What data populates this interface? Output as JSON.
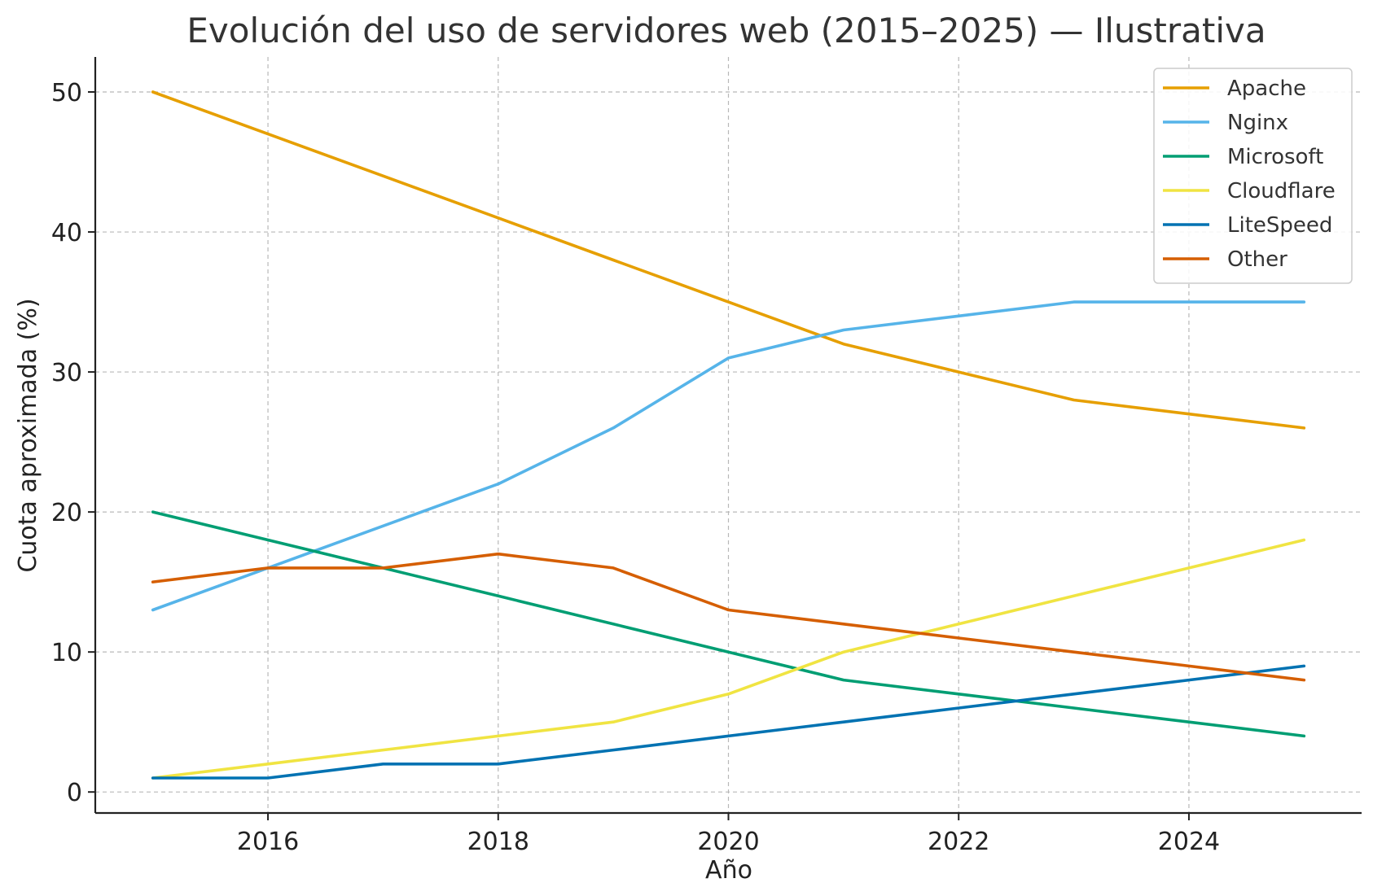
{
  "chart_data": {
    "type": "line",
    "title": "Evolución del uso de servidores web (2015–2025) — Ilustrativa",
    "xlabel": "Año",
    "ylabel": "Cuota aproximada (%)",
    "x": [
      2015,
      2016,
      2017,
      2018,
      2019,
      2020,
      2021,
      2022,
      2023,
      2024,
      2025
    ],
    "xlim": [
      2014.5,
      2025.5
    ],
    "ylim": [
      -1.5,
      52.5
    ],
    "xticks": [
      2016,
      2018,
      2020,
      2022,
      2024
    ],
    "yticks": [
      0,
      10,
      20,
      30,
      40,
      50
    ],
    "grid": true,
    "legend_position": "top-right",
    "series": [
      {
        "name": "Apache",
        "color": "#E69F00",
        "values": [
          50,
          47,
          44,
          41,
          38,
          35,
          32,
          30,
          28,
          27,
          26
        ]
      },
      {
        "name": "Nginx",
        "color": "#56B4E9",
        "values": [
          13,
          16,
          19,
          22,
          26,
          31,
          33,
          34,
          35,
          35,
          35
        ]
      },
      {
        "name": "Microsoft",
        "color": "#009E73",
        "values": [
          20,
          18,
          16,
          14,
          12,
          10,
          8,
          7,
          6,
          5,
          4
        ]
      },
      {
        "name": "Cloudflare",
        "color": "#F0E442",
        "values": [
          1,
          2,
          3,
          4,
          5,
          7,
          10,
          12,
          14,
          16,
          18
        ]
      },
      {
        "name": "LiteSpeed",
        "color": "#0072B2",
        "values": [
          1,
          1,
          2,
          2,
          3,
          4,
          5,
          6,
          7,
          8,
          9
        ]
      },
      {
        "name": "Other",
        "color": "#D55E00",
        "values": [
          15,
          16,
          16,
          17,
          16,
          13,
          12,
          11,
          10,
          9,
          8
        ]
      }
    ]
  }
}
